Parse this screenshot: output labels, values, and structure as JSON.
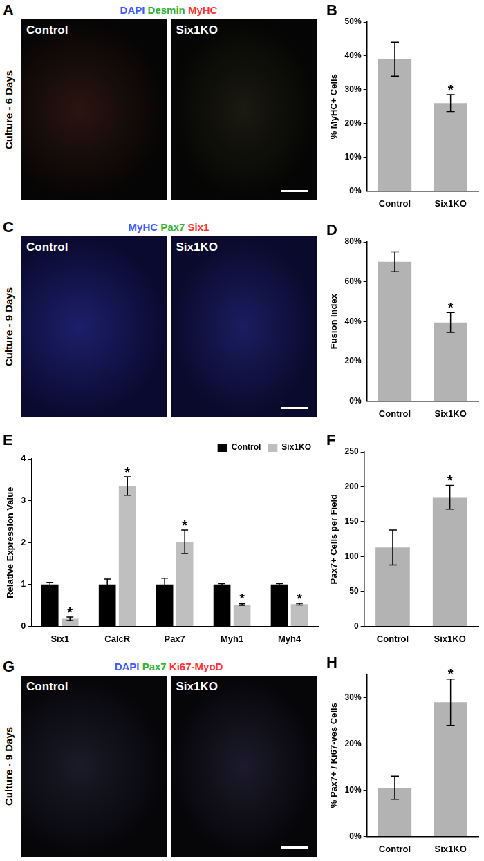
{
  "image_panels": [
    {
      "panel": "A",
      "title": [
        {
          "text": "DAPI",
          "color": "#3f5bff"
        },
        {
          "text": "Desmin",
          "color": "#33b233"
        },
        {
          "text": "MyHC",
          "color": "#ff3333"
        }
      ],
      "side_label": "Culture - 6 Days",
      "images": [
        "Control",
        "Six1KO"
      ]
    },
    {
      "panel": "C",
      "title": [
        {
          "text": "MyHC",
          "color": "#3f5bff"
        },
        {
          "text": "Pax7",
          "color": "#33b233"
        },
        {
          "text": "Six1",
          "color": "#ff3333"
        }
      ],
      "side_label": "Culture - 9 Days",
      "images": [
        "Control",
        "Six1KO"
      ]
    },
    {
      "panel": "G",
      "title": [
        {
          "text": "DAPI",
          "color": "#3f5bff"
        },
        {
          "text": "Pax7",
          "color": "#33b233"
        },
        {
          "text": "Ki67-MyoD",
          "color": "#ff3333"
        }
      ],
      "side_label": "Culture - 9 Days",
      "images": [
        "Control",
        "Six1KO"
      ]
    }
  ],
  "chart_data": [
    {
      "panel": "B",
      "type": "bar",
      "y_label": "% MyHC+ Cells",
      "categories": [
        "Control",
        "Six1KO"
      ],
      "values": [
        39,
        26
      ],
      "errors": [
        5,
        2.5
      ],
      "color": "#b3b3b3",
      "ylim": [
        0,
        50
      ],
      "yticks": [
        {
          "value": 0,
          "label": "0%"
        },
        {
          "value": 10,
          "label": "10%"
        },
        {
          "value": 20,
          "label": "20%"
        },
        {
          "value": 30,
          "label": "30%"
        },
        {
          "value": 40,
          "label": "40%"
        },
        {
          "value": 50,
          "label": "50%"
        }
      ],
      "grid": false,
      "annotations": [
        {
          "category": "Six1KO",
          "text": "*"
        }
      ]
    },
    {
      "panel": "D",
      "type": "bar",
      "y_label": "Fusion Index",
      "categories": [
        "Control",
        "Six1KO"
      ],
      "values": [
        70,
        39.5
      ],
      "errors": [
        5,
        5
      ],
      "color": "#b3b3b3",
      "ylim": [
        0,
        80
      ],
      "yticks": [
        {
          "value": 0,
          "label": "0%"
        },
        {
          "value": 20,
          "label": "20%"
        },
        {
          "value": 40,
          "label": "40%"
        },
        {
          "value": 60,
          "label": "60%"
        },
        {
          "value": 80,
          "label": "80%"
        }
      ],
      "grid": false,
      "annotations": [
        {
          "category": "Six1KO",
          "text": "*"
        }
      ]
    },
    {
      "panel": "E",
      "type": "bar",
      "y_label": "Relative Expression Value",
      "categories": [
        "Six1",
        "CalcR",
        "Pax7",
        "Myh1",
        "Myh4"
      ],
      "series": [
        {
          "name": "Control",
          "color": "#000000",
          "values": [
            1,
            1,
            1,
            1,
            1
          ],
          "errors": [
            0.05,
            0.13,
            0.15,
            0.02,
            0.02
          ]
        },
        {
          "name": "Six1KO",
          "color": "#bfbfbf",
          "values": [
            0.18,
            3.35,
            2.02,
            0.52,
            0.53
          ],
          "errors": [
            0.04,
            0.22,
            0.28,
            0.02,
            0.02
          ]
        }
      ],
      "ylim": [
        0,
        4
      ],
      "yticks": [
        0,
        1,
        2,
        3,
        4
      ],
      "grid": false,
      "legend": "top-right",
      "annotations": [
        {
          "category": "Six1",
          "series": "Six1KO",
          "text": "*"
        },
        {
          "category": "CalcR",
          "series": "Six1KO",
          "text": "*"
        },
        {
          "category": "Pax7",
          "series": "Six1KO",
          "text": "*"
        },
        {
          "category": "Myh1",
          "series": "Six1KO",
          "text": "*"
        },
        {
          "category": "Myh4",
          "series": "Six1KO",
          "text": "*"
        }
      ]
    },
    {
      "panel": "F",
      "type": "bar",
      "y_label": "Pax7+ Cells per Field",
      "categories": [
        "Control",
        "Six1KO"
      ],
      "values": [
        113,
        185
      ],
      "errors": [
        25,
        17
      ],
      "color": "#b3b3b3",
      "ylim": [
        0,
        250
      ],
      "yticks": [
        0,
        50,
        100,
        150,
        200,
        250
      ],
      "grid": false,
      "annotations": [
        {
          "category": "Six1KO",
          "text": "*"
        }
      ]
    },
    {
      "panel": "H",
      "type": "bar",
      "y_label": "% Pax7+ / Ki67-ves Cells",
      "categories": [
        "Control",
        "Six1KO"
      ],
      "values": [
        10.5,
        29
      ],
      "errors": [
        2.5,
        5
      ],
      "color": "#b3b3b3",
      "ylim": [
        0,
        35
      ],
      "yticks": [
        {
          "value": 0,
          "label": "0%"
        },
        {
          "value": 10,
          "label": "10%"
        },
        {
          "value": 20,
          "label": "20%"
        },
        {
          "value": 30,
          "label": "30%"
        }
      ],
      "grid": false,
      "annotations": [
        {
          "category": "Six1KO",
          "text": "*"
        }
      ]
    }
  ]
}
